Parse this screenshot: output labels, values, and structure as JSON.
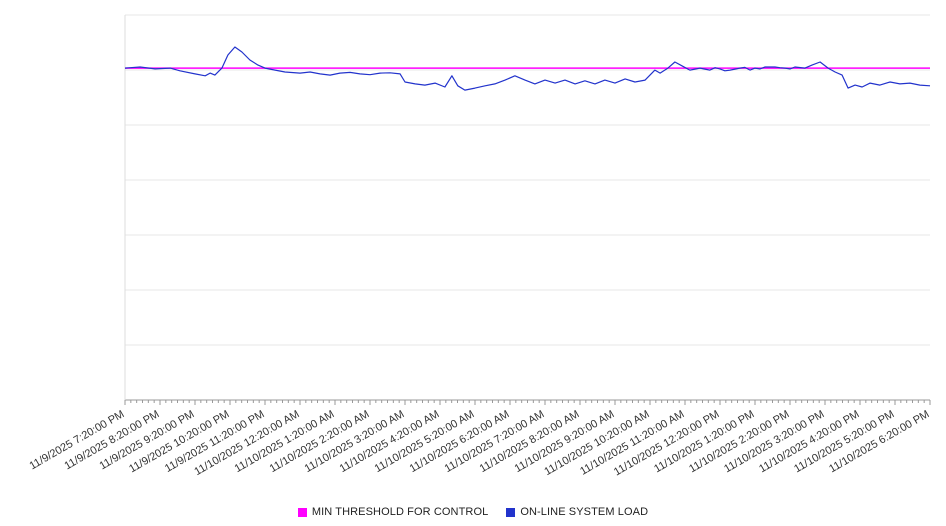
{
  "chart_data": {
    "type": "line",
    "title": "",
    "xlabel": "",
    "ylabel": "",
    "ylim": [
      0,
      100
    ],
    "y_axis_labels_visible": false,
    "y_gridline_divisions": 7,
    "grid_on": true,
    "grid_color": "#e7e7e7",
    "axis_color": "#999999",
    "legend_position": "bottom-center",
    "x_labels": [
      "11/9/2025 7:20:00 PM",
      "11/9/2025 8:20:00 PM",
      "11/9/2025 9:20:00 PM",
      "11/9/2025 10:20:00 PM",
      "11/9/2025 11:20:00 PM",
      "11/10/2025 12:20:00 AM",
      "11/10/2025 1:20:00 AM",
      "11/10/2025 2:20:00 AM",
      "11/10/2025 3:20:00 AM",
      "11/10/2025 4:20:00 AM",
      "11/10/2025 5:20:00 AM",
      "11/10/2025 6:20:00 AM",
      "11/10/2025 7:20:00 AM",
      "11/10/2025 8:20:00 AM",
      "11/10/2025 9:20:00 AM",
      "11/10/2025 10:20:00 AM",
      "11/10/2025 11:20:00 AM",
      "11/10/2025 12:20:00 PM",
      "11/10/2025 1:20:00 PM",
      "11/10/2025 2:20:00 PM",
      "11/10/2025 3:20:00 PM",
      "11/10/2025 4:20:00 PM",
      "11/10/2025 5:20:00 PM",
      "11/10/2025 6:20:00 PM"
    ],
    "series": [
      {
        "name": "MIN THRESHOLD FOR CONTROL",
        "color": "#ff00ff",
        "style": "constant",
        "value": 86.2
      },
      {
        "name": "ON-LINE SYSTEM LOAD",
        "color": "#2233cc",
        "style": "line",
        "points": [
          [
            0,
            86.2
          ],
          [
            0.43,
            86.5
          ],
          [
            0.86,
            86.0
          ],
          [
            1.29,
            86.2
          ],
          [
            1.57,
            85.5
          ],
          [
            2.0,
            84.7
          ],
          [
            2.29,
            84.2
          ],
          [
            2.43,
            84.9
          ],
          [
            2.57,
            84.4
          ],
          [
            2.77,
            86.2
          ],
          [
            2.94,
            89.6
          ],
          [
            3.14,
            91.7
          ],
          [
            3.34,
            90.4
          ],
          [
            3.57,
            88.3
          ],
          [
            3.8,
            87.0
          ],
          [
            4.0,
            86.2
          ],
          [
            4.29,
            85.7
          ],
          [
            4.57,
            85.2
          ],
          [
            5.0,
            84.9
          ],
          [
            5.29,
            85.2
          ],
          [
            5.57,
            84.7
          ],
          [
            5.86,
            84.4
          ],
          [
            6.14,
            84.9
          ],
          [
            6.43,
            85.1
          ],
          [
            6.71,
            84.7
          ],
          [
            7.0,
            84.5
          ],
          [
            7.29,
            84.9
          ],
          [
            7.57,
            85.0
          ],
          [
            7.86,
            84.7
          ],
          [
            8.0,
            82.6
          ],
          [
            8.29,
            82.1
          ],
          [
            8.57,
            81.8
          ],
          [
            8.86,
            82.3
          ],
          [
            9.14,
            81.3
          ],
          [
            9.34,
            84.2
          ],
          [
            9.51,
            81.6
          ],
          [
            9.71,
            80.5
          ],
          [
            10.0,
            81.0
          ],
          [
            10.29,
            81.6
          ],
          [
            10.57,
            82.1
          ],
          [
            10.86,
            83.1
          ],
          [
            11.14,
            84.2
          ],
          [
            11.43,
            83.1
          ],
          [
            11.71,
            82.1
          ],
          [
            12.0,
            83.1
          ],
          [
            12.29,
            82.3
          ],
          [
            12.57,
            83.1
          ],
          [
            12.86,
            82.1
          ],
          [
            13.14,
            82.9
          ],
          [
            13.43,
            82.1
          ],
          [
            13.71,
            83.1
          ],
          [
            14.0,
            82.3
          ],
          [
            14.29,
            83.4
          ],
          [
            14.57,
            82.6
          ],
          [
            14.86,
            83.1
          ],
          [
            15.0,
            84.4
          ],
          [
            15.14,
            85.7
          ],
          [
            15.29,
            84.9
          ],
          [
            15.51,
            86.2
          ],
          [
            15.71,
            87.8
          ],
          [
            15.91,
            86.8
          ],
          [
            16.14,
            85.7
          ],
          [
            16.43,
            86.2
          ],
          [
            16.71,
            85.7
          ],
          [
            16.86,
            86.3
          ],
          [
            17.0,
            86.0
          ],
          [
            17.14,
            85.5
          ],
          [
            17.29,
            85.7
          ],
          [
            17.57,
            86.2
          ],
          [
            17.71,
            86.4
          ],
          [
            17.86,
            85.7
          ],
          [
            18.0,
            86.2
          ],
          [
            18.14,
            86.0
          ],
          [
            18.29,
            86.5
          ],
          [
            18.57,
            86.5
          ],
          [
            18.71,
            86.3
          ],
          [
            18.86,
            86.2
          ],
          [
            19.0,
            86.0
          ],
          [
            19.14,
            86.5
          ],
          [
            19.43,
            86.2
          ],
          [
            19.63,
            87.0
          ],
          [
            19.86,
            87.8
          ],
          [
            20.09,
            86.2
          ],
          [
            20.29,
            85.2
          ],
          [
            20.49,
            84.4
          ],
          [
            20.66,
            81.0
          ],
          [
            20.86,
            81.8
          ],
          [
            21.06,
            81.3
          ],
          [
            21.29,
            82.3
          ],
          [
            21.57,
            81.8
          ],
          [
            21.86,
            82.6
          ],
          [
            22.14,
            82.1
          ],
          [
            22.43,
            82.3
          ],
          [
            22.71,
            81.8
          ],
          [
            23.0,
            81.6
          ]
        ]
      }
    ]
  }
}
